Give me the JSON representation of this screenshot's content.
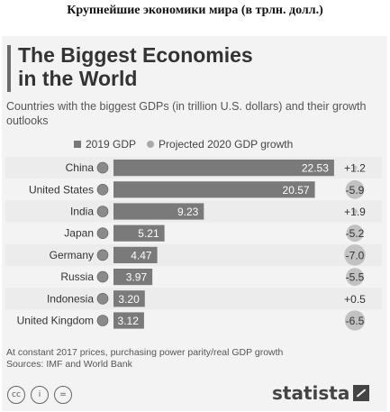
{
  "heading_ru": "Крупнейшие экономики мира (в трлн. долл.)",
  "title_line1": "The Biggest Economies",
  "title_line2": "in the World",
  "subtitle": "Countries with the biggest GDPs (in trillion U.S. dollars) and their growth outlooks",
  "footnote_line1": "At constant 2017 prices, purchasing power parity/real GDP growth",
  "footnote_line2": "Sources: IMF and World Bank",
  "brand": "statista",
  "cc_icons": [
    "creative-commons-icon",
    "attribution-icon",
    "no-derivatives-icon"
  ],
  "colors": {
    "bar": "#7a7a7a",
    "row_even": "#ececec",
    "row_odd": "#f3f3f3",
    "bubble": "#c2c2c2"
  },
  "chart_data": {
    "type": "bar",
    "orientation": "horizontal",
    "categories": [
      "China",
      "United States",
      "India",
      "Japan",
      "Germany",
      "Russia",
      "Indonesia",
      "United Kingdom"
    ],
    "series": [
      {
        "name": "2019 GDP",
        "values": [
          22.53,
          20.57,
          9.23,
          5.21,
          4.47,
          3.97,
          3.2,
          3.12
        ]
      },
      {
        "name": "Projected 2020 GDP growth",
        "values": [
          "+1.2",
          "-5.9",
          "+1.9",
          "-5.2",
          "-7.0",
          "-5.5",
          "+0.5",
          "-6.5"
        ]
      }
    ],
    "legend": [
      "2019 GDP",
      "Projected 2020 GDP growth"
    ],
    "legend_position": "top",
    "xmax": 23
  }
}
